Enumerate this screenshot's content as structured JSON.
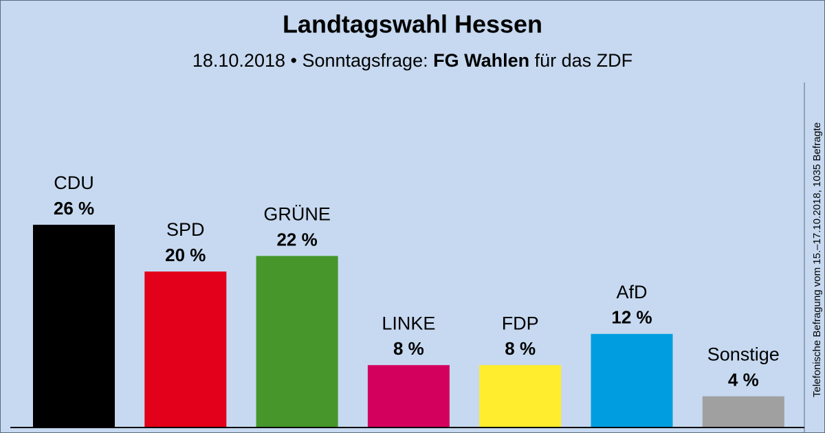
{
  "chart_data": {
    "type": "bar",
    "title": "Landtagswahl Hessen",
    "subtitle": [
      "18.10.2018 • Sonntagsfrage: ",
      "FG Wahlen",
      " für das ZDF"
    ],
    "note": "Telefonische Befragung vom 15.–17.10.2018, 1035 Befragte",
    "categories": [
      "CDU",
      "SPD",
      "GRÜNE",
      "LINKE",
      "FDP",
      "AfD",
      "Sonstige"
    ],
    "values": [
      26,
      20,
      22,
      8,
      8,
      12,
      4
    ],
    "value_labels": [
      "26 %",
      "20 %",
      "22 %",
      "8 %",
      "8 %",
      "12 %",
      "4 %"
    ],
    "colors": [
      "#000000",
      "#e2001a",
      "#46962b",
      "#d4005e",
      "#ffed2e",
      "#009ee0",
      "#a0a0a0"
    ],
    "ylim": [
      0,
      26
    ]
  }
}
